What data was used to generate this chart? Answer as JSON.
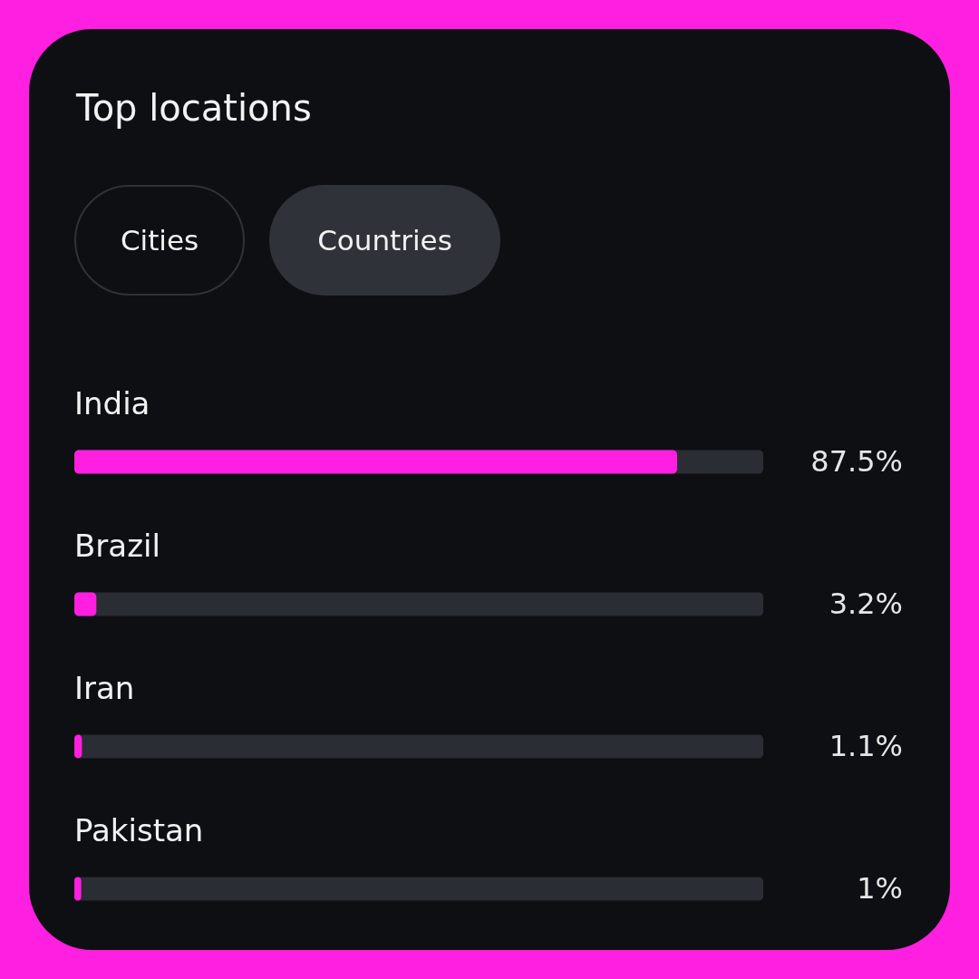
{
  "chart_data": {
    "type": "bar",
    "orientation": "horizontal",
    "title": "Top locations",
    "annotations": [
      "Cities",
      "Countries"
    ],
    "categories": [
      "India",
      "Brazil",
      "Iran",
      "Pakistan"
    ],
    "xlim": [
      0,
      100
    ],
    "series": [
      {
        "color": "#ff1fe0",
        "values": [
          87.5,
          3.2,
          1.1,
          1
        ],
        "value_labels": [
          "87.5%",
          "3.2%",
          "1.1%",
          "1%"
        ]
      }
    ]
  }
}
